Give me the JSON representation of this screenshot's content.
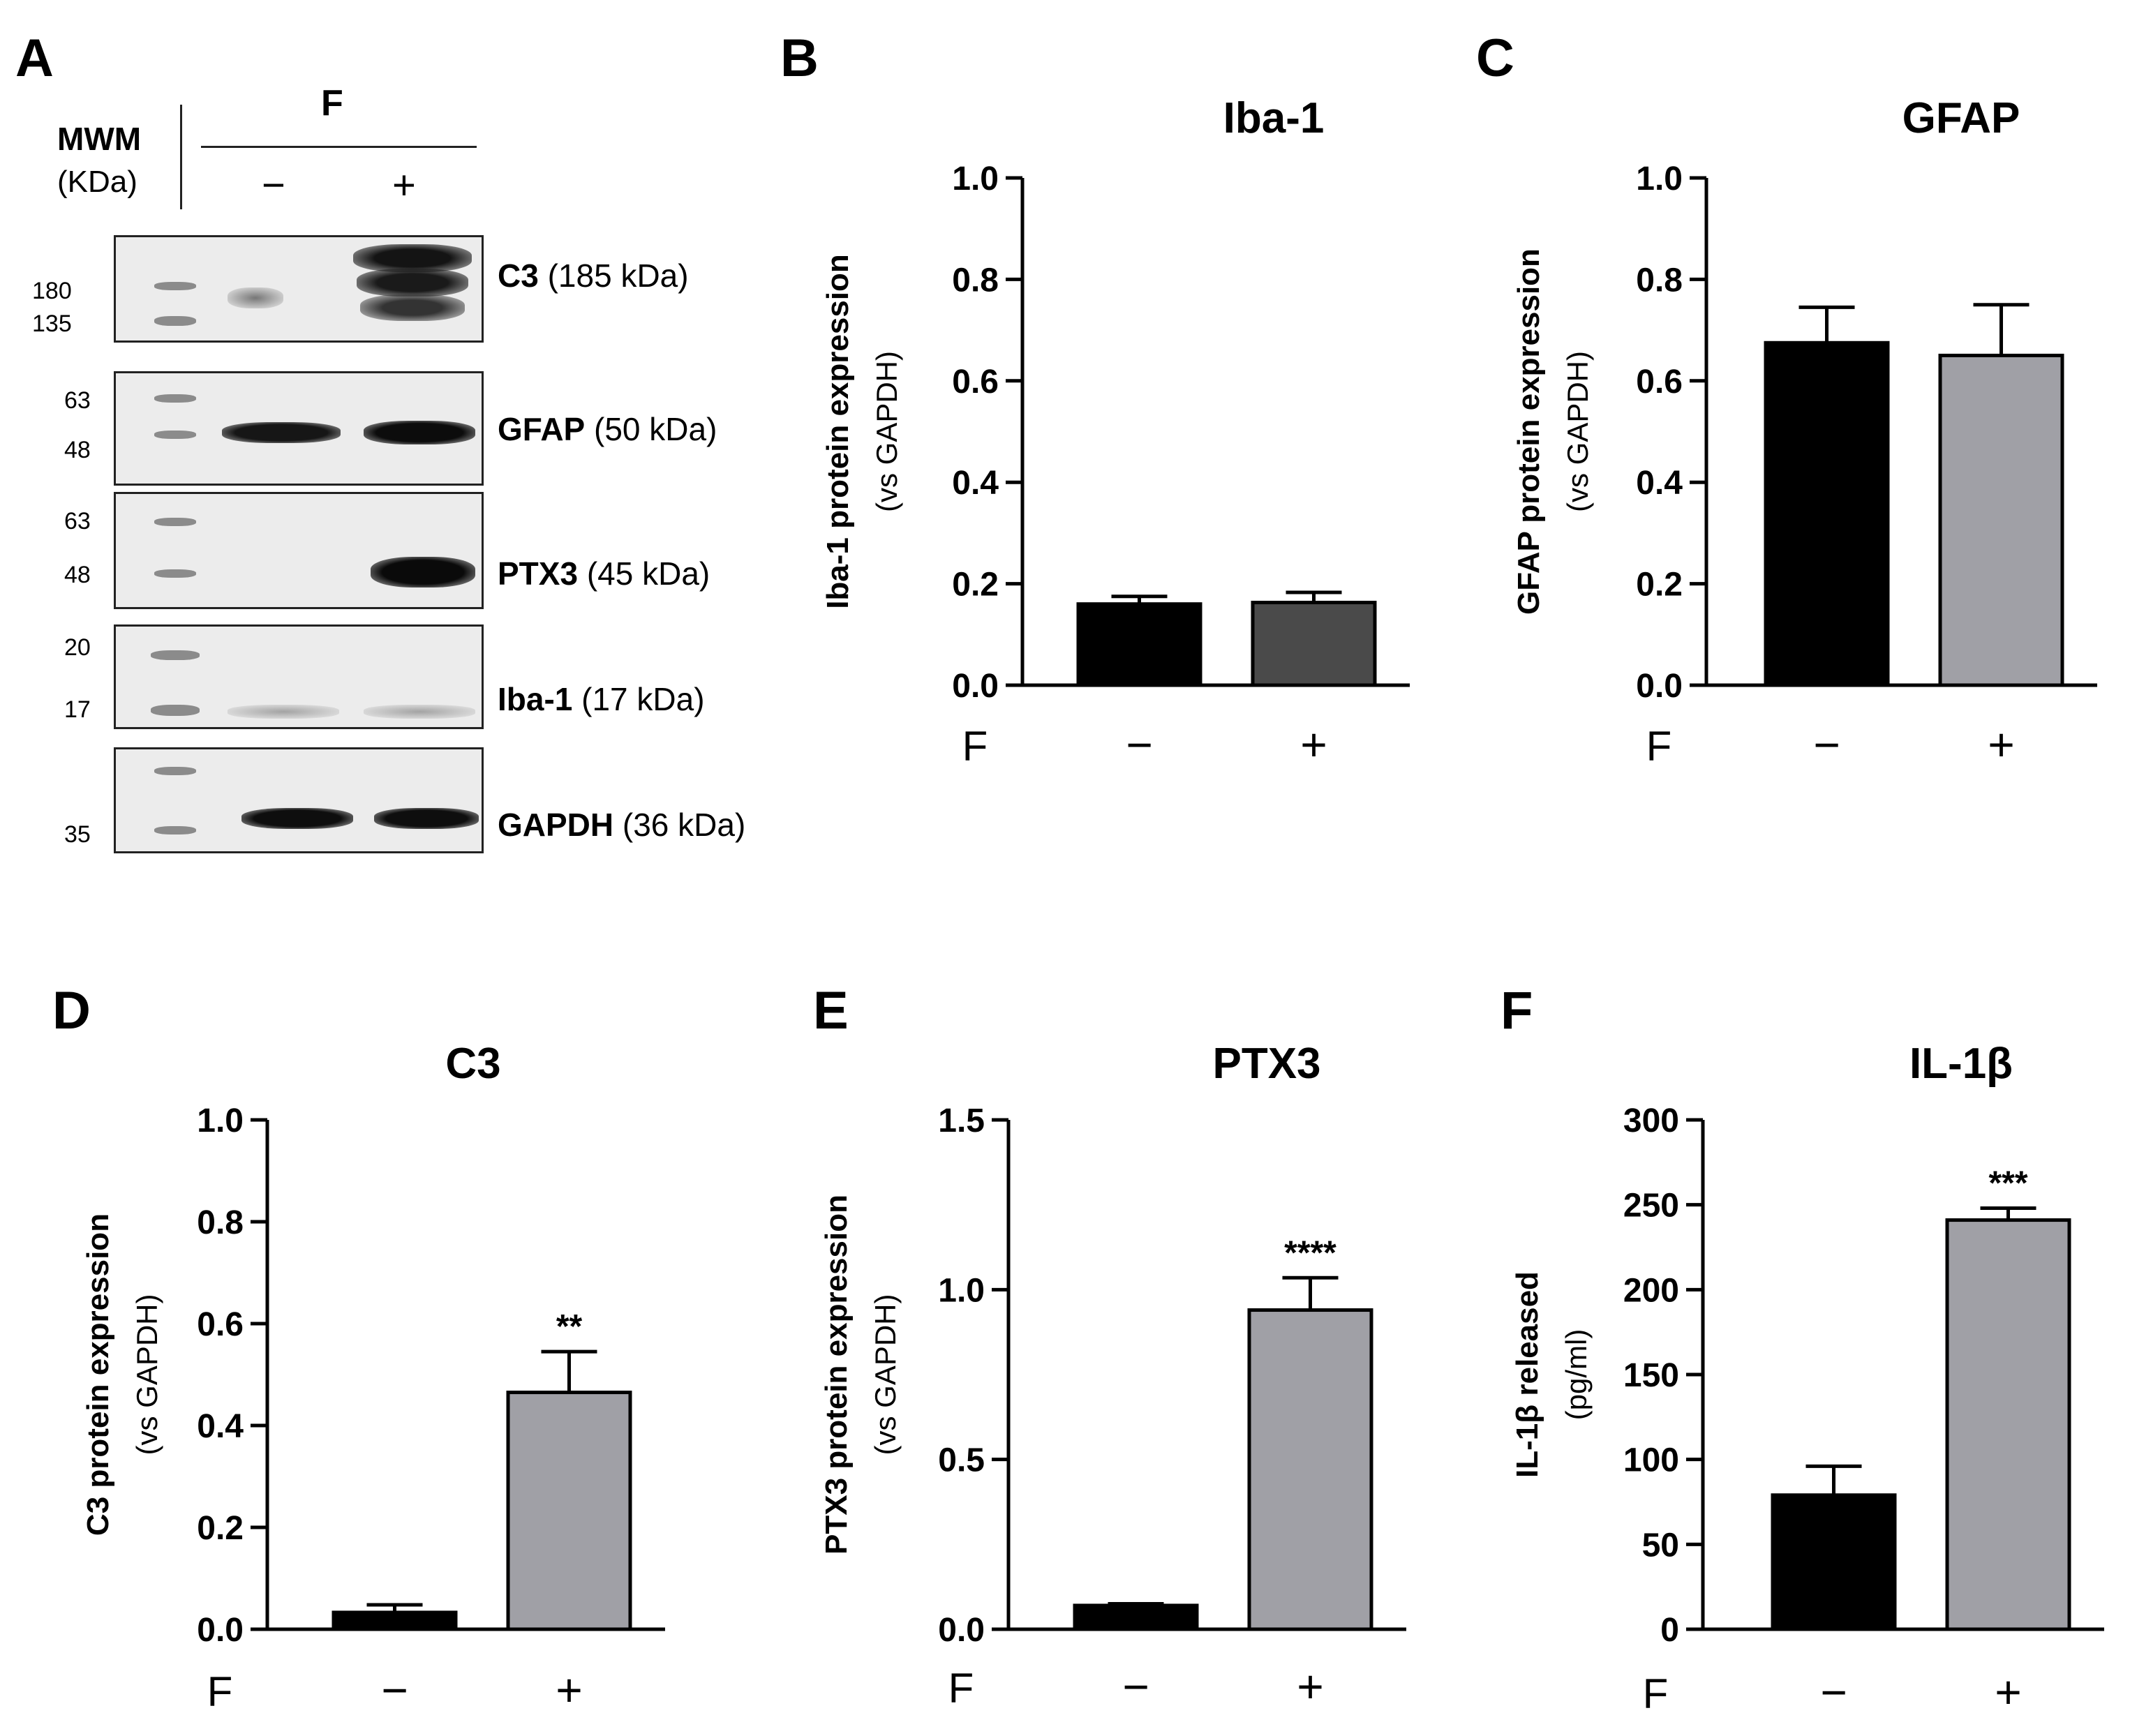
{
  "panel_letters": [
    "A",
    "B",
    "C",
    "D",
    "E",
    "F"
  ],
  "western_blot": {
    "mwm_label": "MWM",
    "kda_label": "(KDa)",
    "treatment_label": "F",
    "lane_minus": "−",
    "lane_plus": "+",
    "panels": [
      {
        "protein": "C3",
        "size": "(185 kDa)",
        "markers": [
          "180",
          "135"
        ]
      },
      {
        "protein": "GFAP",
        "size": "(50 kDa)",
        "markers": [
          "63",
          "48"
        ]
      },
      {
        "protein": "PTX3",
        "size": "(45 kDa)",
        "markers": [
          "63",
          "48"
        ]
      },
      {
        "protein": "Iba-1",
        "size": "(17 kDa)",
        "markers": [
          "20",
          "17"
        ]
      },
      {
        "protein": "GAPDH",
        "size": "(36 kDa)",
        "markers": [
          "35"
        ]
      }
    ]
  },
  "colors": {
    "black_bar": "#000000",
    "dark_gray_bar": "#4a4a4a",
    "gray_bar": "#a0a0a6"
  },
  "chart_data": [
    {
      "type": "bar",
      "panel": "B",
      "title": "Iba-1",
      "ylabel": "Iba-1 protein expression",
      "ylabel_sub": "(vs GAPDH)",
      "x_prefix": "F",
      "categories": [
        "−",
        "+"
      ],
      "values": [
        0.16,
        0.163
      ],
      "errors": [
        0.015,
        0.02
      ],
      "bar_colors": [
        "#000000",
        "#4a4a4a"
      ],
      "ylim": [
        0,
        1.0
      ],
      "yticks": [
        "0.0",
        "0.2",
        "0.4",
        "0.6",
        "0.8",
        "1.0"
      ],
      "significance": [
        "",
        ""
      ]
    },
    {
      "type": "bar",
      "panel": "C",
      "title": "GFAP",
      "ylabel": "GFAP protein expression",
      "ylabel_sub": "(vs GAPDH)",
      "x_prefix": "F",
      "categories": [
        "−",
        "+"
      ],
      "values": [
        0.675,
        0.65
      ],
      "errors": [
        0.07,
        0.1
      ],
      "bar_colors": [
        "#000000",
        "#a0a0a6"
      ],
      "ylim": [
        0,
        1.0
      ],
      "yticks": [
        "0.0",
        "0.2",
        "0.4",
        "0.6",
        "0.8",
        "1.0"
      ],
      "significance": [
        "",
        ""
      ]
    },
    {
      "type": "bar",
      "panel": "D",
      "title": "C3",
      "ylabel": "C3 protein expression",
      "ylabel_sub": "(vs GAPDH)",
      "x_prefix": "F",
      "categories": [
        "−",
        "+"
      ],
      "values": [
        0.033,
        0.465
      ],
      "errors": [
        0.015,
        0.08
      ],
      "bar_colors": [
        "#000000",
        "#a0a0a6"
      ],
      "ylim": [
        0,
        1.0
      ],
      "yticks": [
        "0.0",
        "0.2",
        "0.4",
        "0.6",
        "0.8",
        "1.0"
      ],
      "significance": [
        "",
        "**"
      ]
    },
    {
      "type": "bar",
      "panel": "E",
      "title": "PTX3",
      "ylabel": "PTX3 protein expression",
      "ylabel_sub": "(vs GAPDH)",
      "x_prefix": "F",
      "categories": [
        "−",
        "+"
      ],
      "values": [
        0.07,
        0.94
      ],
      "errors": [
        0.005,
        0.095
      ],
      "bar_colors": [
        "#000000",
        "#a0a0a6"
      ],
      "ylim": [
        0,
        1.5
      ],
      "yticks": [
        "0.0",
        "0.5",
        "1.0",
        "1.5"
      ],
      "significance": [
        "",
        "****"
      ]
    },
    {
      "type": "bar",
      "panel": "F",
      "title": "IL-1β",
      "ylabel": "IL-1β released",
      "ylabel_sub": "(pg/ml)",
      "x_prefix": "F",
      "categories": [
        "−",
        "+"
      ],
      "values": [
        79,
        241
      ],
      "errors": [
        17,
        7
      ],
      "bar_colors": [
        "#000000",
        "#a0a0a6"
      ],
      "ylim": [
        0,
        300
      ],
      "yticks": [
        "0",
        "50",
        "100",
        "150",
        "200",
        "250",
        "300"
      ],
      "significance": [
        "",
        "***"
      ]
    }
  ]
}
